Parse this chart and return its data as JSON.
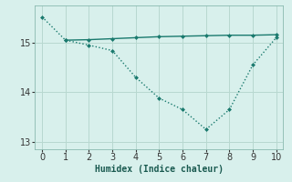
{
  "line1_x": [
    0,
    1,
    2,
    3,
    4,
    5,
    6,
    7,
    8,
    9,
    10
  ],
  "line1_y": [
    15.52,
    15.05,
    14.95,
    14.84,
    14.3,
    13.88,
    13.65,
    13.25,
    13.65,
    14.55,
    15.1
  ],
  "line2_x": [
    1,
    2,
    3,
    4,
    5,
    6,
    7,
    8,
    9,
    10
  ],
  "line2_y": [
    15.05,
    15.06,
    15.08,
    15.1,
    15.12,
    15.13,
    15.14,
    15.15,
    15.15,
    15.16
  ],
  "line_color": "#1a7a6e",
  "bg_color": "#d8f0ec",
  "grid_color": "#b8d8d0",
  "xlabel": "Humidex (Indice chaleur)",
  "xlim": [
    -0.3,
    10.3
  ],
  "ylim": [
    12.85,
    15.75
  ],
  "yticks": [
    13,
    14,
    15
  ],
  "xticks": [
    0,
    1,
    2,
    3,
    4,
    5,
    6,
    7,
    8,
    9,
    10
  ],
  "xlabel_fontsize": 7,
  "tick_fontsize": 7,
  "marker": "D",
  "marker_size": 2.5,
  "linewidth": 1.0
}
